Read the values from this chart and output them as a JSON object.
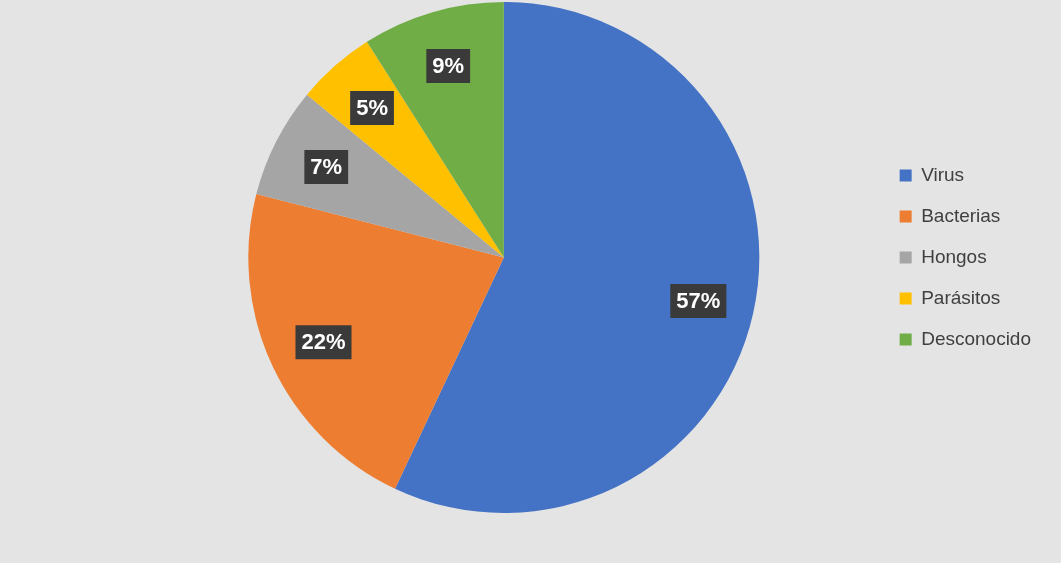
{
  "chart_data": {
    "type": "pie",
    "categories": [
      "Virus",
      "Bacterias",
      "Hongos",
      "Parásitos",
      "Desconocido"
    ],
    "values": [
      57,
      22,
      7,
      5,
      9
    ],
    "colors": [
      "#4472c4",
      "#ed7d31",
      "#a5a5a5",
      "#ffc000",
      "#70ad47"
    ],
    "value_labels": [
      "57%",
      "22%",
      "7%",
      "5%",
      "9%"
    ],
    "legend": "right"
  }
}
